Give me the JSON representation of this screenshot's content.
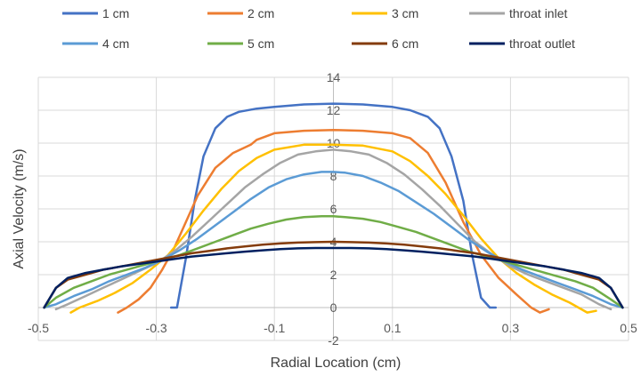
{
  "chart_data": {
    "type": "line",
    "xlabel": "Radial Location (cm)",
    "ylabel": "Axial Velocity (m/s)",
    "xlim": [
      -0.5,
      0.5
    ],
    "ylim": [
      -2,
      14
    ],
    "x_ticks": [
      -0.5,
      -0.3,
      -0.1,
      0.1,
      0.3,
      0.5
    ],
    "x_tick_labels": [
      "-0.5",
      "-0.3",
      "-0.1",
      "0.1",
      "0.3",
      "0.5"
    ],
    "y_ticks": [
      -2,
      0,
      2,
      4,
      6,
      8,
      10,
      12,
      14
    ],
    "y_tick_labels": [
      "-2",
      "0",
      "2",
      "4",
      "6",
      "8",
      "10",
      "12",
      "14"
    ],
    "grid": true,
    "legend_position": "top",
    "series": [
      {
        "name": "1 cm",
        "color": "#4472C4",
        "x": [
          -0.275,
          -0.265,
          -0.25,
          -0.235,
          -0.22,
          -0.2,
          -0.18,
          -0.16,
          -0.13,
          -0.1,
          -0.05,
          0,
          0.05,
          0.1,
          0.13,
          0.16,
          0.18,
          0.2,
          0.22,
          0.235,
          0.25,
          0.265,
          0.275
        ],
        "y": [
          0,
          0,
          3,
          6.5,
          9.2,
          10.9,
          11.6,
          11.9,
          12.1,
          12.2,
          12.35,
          12.4,
          12.35,
          12.2,
          12.0,
          11.6,
          10.9,
          9.2,
          6.5,
          3.2,
          0.6,
          0,
          0
        ]
      },
      {
        "name": "2 cm",
        "color": "#ED7D31",
        "x": [
          -0.365,
          -0.35,
          -0.33,
          -0.31,
          -0.29,
          -0.27,
          -0.25,
          -0.23,
          -0.2,
          -0.17,
          -0.14,
          -0.13,
          -0.1,
          -0.05,
          0,
          0.05,
          0.1,
          0.13,
          0.16,
          0.19,
          0.22,
          0.25,
          0.28,
          0.31,
          0.335,
          0.35,
          0.365
        ],
        "y": [
          -0.3,
          0,
          0.5,
          1.2,
          2.3,
          3.6,
          5.2,
          6.8,
          8.5,
          9.4,
          9.9,
          10.2,
          10.6,
          10.75,
          10.8,
          10.75,
          10.6,
          10.3,
          9.4,
          7.6,
          5.2,
          3.2,
          1.8,
          0.8,
          0,
          -0.3,
          -0.1
        ]
      },
      {
        "name": "3 cm",
        "color": "#FFC000",
        "x": [
          -0.445,
          -0.43,
          -0.4,
          -0.37,
          -0.34,
          -0.31,
          -0.28,
          -0.25,
          -0.22,
          -0.19,
          -0.16,
          -0.13,
          -0.1,
          -0.05,
          0,
          0.05,
          0.1,
          0.13,
          0.16,
          0.19,
          0.22,
          0.25,
          0.28,
          0.31,
          0.34,
          0.37,
          0.4,
          0.43,
          0.445
        ],
        "y": [
          -0.3,
          0,
          0.4,
          0.9,
          1.5,
          2.3,
          3.2,
          4.5,
          5.9,
          7.2,
          8.3,
          9.1,
          9.6,
          9.9,
          9.9,
          9.85,
          9.5,
          8.9,
          8.0,
          6.9,
          5.6,
          4.2,
          3.0,
          2.1,
          1.4,
          0.8,
          0.3,
          -0.3,
          -0.2
        ]
      },
      {
        "name": "throat inlet",
        "color": "#A5A5A5",
        "x": [
          -0.47,
          -0.45,
          -0.42,
          -0.39,
          -0.36,
          -0.33,
          -0.3,
          -0.27,
          -0.24,
          -0.21,
          -0.18,
          -0.15,
          -0.12,
          -0.09,
          -0.06,
          -0.03,
          0,
          0.03,
          0.06,
          0.09,
          0.12,
          0.15,
          0.18,
          0.21,
          0.24,
          0.27,
          0.3,
          0.33,
          0.36,
          0.39,
          0.42,
          0.45,
          0.47
        ],
        "y": [
          -0.1,
          0.2,
          0.7,
          1.2,
          1.7,
          2.2,
          2.7,
          3.4,
          4.3,
          5.3,
          6.3,
          7.3,
          8.1,
          8.8,
          9.3,
          9.5,
          9.6,
          9.5,
          9.3,
          8.8,
          8.1,
          7.2,
          6.2,
          5.1,
          4.0,
          3.2,
          2.5,
          2.0,
          1.6,
          1.2,
          0.8,
          0.2,
          -0.1
        ]
      },
      {
        "name": "4 cm",
        "color": "#5B9BD5",
        "x": [
          -0.49,
          -0.47,
          -0.44,
          -0.41,
          -0.38,
          -0.35,
          -0.32,
          -0.29,
          -0.26,
          -0.23,
          -0.2,
          -0.17,
          -0.14,
          -0.11,
          -0.08,
          -0.05,
          -0.02,
          0,
          0.02,
          0.05,
          0.08,
          0.11,
          0.14,
          0.17,
          0.2,
          0.23,
          0.26,
          0.29,
          0.32,
          0.35,
          0.38,
          0.41,
          0.44,
          0.47,
          0.49
        ],
        "y": [
          0,
          0.2,
          0.7,
          1.1,
          1.6,
          2.0,
          2.4,
          2.9,
          3.5,
          4.2,
          5.0,
          5.8,
          6.6,
          7.3,
          7.8,
          8.1,
          8.25,
          8.25,
          8.2,
          8.0,
          7.6,
          7.1,
          6.4,
          5.7,
          4.9,
          4.1,
          3.4,
          2.8,
          2.3,
          1.9,
          1.5,
          1.1,
          0.7,
          0.2,
          0
        ]
      },
      {
        "name": "5 cm",
        "color": "#70AD47",
        "x": [
          -0.49,
          -0.47,
          -0.44,
          -0.41,
          -0.38,
          -0.35,
          -0.32,
          -0.29,
          -0.26,
          -0.23,
          -0.2,
          -0.17,
          -0.14,
          -0.11,
          -0.08,
          -0.05,
          -0.02,
          0,
          0.02,
          0.05,
          0.08,
          0.11,
          0.14,
          0.17,
          0.2,
          0.23,
          0.26,
          0.29,
          0.32,
          0.35,
          0.38,
          0.41,
          0.44,
          0.47,
          0.49
        ],
        "y": [
          0,
          0.6,
          1.2,
          1.6,
          2.0,
          2.3,
          2.6,
          2.9,
          3.2,
          3.6,
          4.0,
          4.4,
          4.8,
          5.1,
          5.35,
          5.5,
          5.55,
          5.55,
          5.5,
          5.4,
          5.2,
          4.9,
          4.6,
          4.2,
          3.8,
          3.4,
          3.1,
          2.8,
          2.5,
          2.2,
          1.9,
          1.6,
          1.2,
          0.5,
          0
        ]
      },
      {
        "name": "6 cm",
        "color": "#843C0C",
        "x": [
          -0.49,
          -0.47,
          -0.45,
          -0.42,
          -0.39,
          -0.36,
          -0.33,
          -0.3,
          -0.27,
          -0.24,
          -0.21,
          -0.18,
          -0.15,
          -0.12,
          -0.09,
          -0.06,
          -0.03,
          0,
          0.03,
          0.06,
          0.09,
          0.12,
          0.15,
          0.18,
          0.21,
          0.24,
          0.27,
          0.3,
          0.33,
          0.36,
          0.39,
          0.42,
          0.45,
          0.47,
          0.49
        ],
        "y": [
          0,
          1.2,
          1.7,
          2.0,
          2.3,
          2.5,
          2.7,
          2.9,
          3.1,
          3.3,
          3.45,
          3.6,
          3.72,
          3.82,
          3.9,
          3.95,
          3.98,
          4.0,
          3.98,
          3.95,
          3.9,
          3.82,
          3.72,
          3.6,
          3.45,
          3.3,
          3.1,
          2.9,
          2.7,
          2.5,
          2.3,
          2.0,
          1.7,
          1.2,
          0
        ]
      },
      {
        "name": "throat outlet",
        "color": "#002060",
        "x": [
          -0.49,
          -0.47,
          -0.45,
          -0.42,
          -0.39,
          -0.36,
          -0.33,
          -0.3,
          -0.27,
          -0.24,
          -0.21,
          -0.18,
          -0.15,
          -0.12,
          -0.09,
          -0.06,
          -0.03,
          0,
          0.03,
          0.06,
          0.09,
          0.12,
          0.15,
          0.18,
          0.21,
          0.24,
          0.27,
          0.3,
          0.33,
          0.36,
          0.39,
          0.42,
          0.45,
          0.47,
          0.49
        ],
        "y": [
          0,
          1.2,
          1.8,
          2.1,
          2.3,
          2.5,
          2.65,
          2.8,
          2.95,
          3.1,
          3.2,
          3.3,
          3.4,
          3.48,
          3.55,
          3.6,
          3.62,
          3.62,
          3.62,
          3.6,
          3.55,
          3.48,
          3.4,
          3.3,
          3.2,
          3.1,
          2.95,
          2.8,
          2.65,
          2.5,
          2.3,
          2.1,
          1.8,
          1.2,
          0
        ]
      }
    ]
  }
}
